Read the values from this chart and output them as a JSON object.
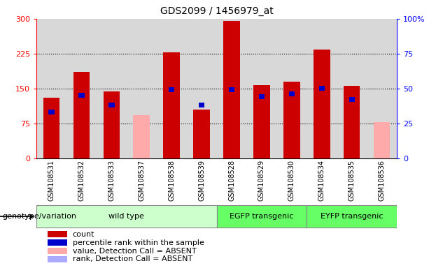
{
  "title": "GDS2099 / 1456979_at",
  "samples": [
    "GSM108531",
    "GSM108532",
    "GSM108533",
    "GSM108537",
    "GSM108538",
    "GSM108539",
    "GSM108528",
    "GSM108529",
    "GSM108530",
    "GSM108534",
    "GSM108535",
    "GSM108536"
  ],
  "count_values": [
    130,
    185,
    143,
    null,
    228,
    105,
    295,
    157,
    165,
    233,
    155,
    null
  ],
  "percentile_rank": [
    33,
    45,
    38,
    null,
    49,
    38,
    49,
    44,
    46,
    50,
    42,
    null
  ],
  "absent_value": [
    null,
    null,
    null,
    93,
    null,
    null,
    null,
    null,
    null,
    null,
    null,
    78
  ],
  "absent_rank": [
    null,
    null,
    null,
    null,
    null,
    null,
    null,
    null,
    null,
    null,
    null,
    null
  ],
  "group_configs": [
    {
      "label": "wild type",
      "start": 0,
      "end": 6,
      "color": "#ccffcc"
    },
    {
      "label": "EGFP transgenic",
      "start": 6,
      "end": 9,
      "color": "#66ff66"
    },
    {
      "label": "EYFP transgenic",
      "start": 9,
      "end": 12,
      "color": "#66ff66"
    }
  ],
  "left_ylim": [
    0,
    300
  ],
  "right_ylim": [
    0,
    100
  ],
  "left_yticks": [
    0,
    75,
    150,
    225,
    300
  ],
  "right_yticks": [
    0,
    25,
    50,
    75,
    100
  ],
  "right_yticklabels": [
    "0",
    "25",
    "50",
    "75",
    "100%"
  ],
  "grid_values": [
    75,
    150,
    225
  ],
  "count_color": "#cc0000",
  "rank_color": "#0000cc",
  "absent_val_color": "#ffaaaa",
  "absent_rank_color": "#aaaaff",
  "col_bg_color": "#d8d8d8",
  "plot_bg": "#ffffff",
  "legend_items": [
    {
      "label": "count",
      "color": "#cc0000"
    },
    {
      "label": "percentile rank within the sample",
      "color": "#0000cc"
    },
    {
      "label": "value, Detection Call = ABSENT",
      "color": "#ffaaaa"
    },
    {
      "label": "rank, Detection Call = ABSENT",
      "color": "#aaaaff"
    }
  ],
  "genotype_label": "genotype/variation"
}
